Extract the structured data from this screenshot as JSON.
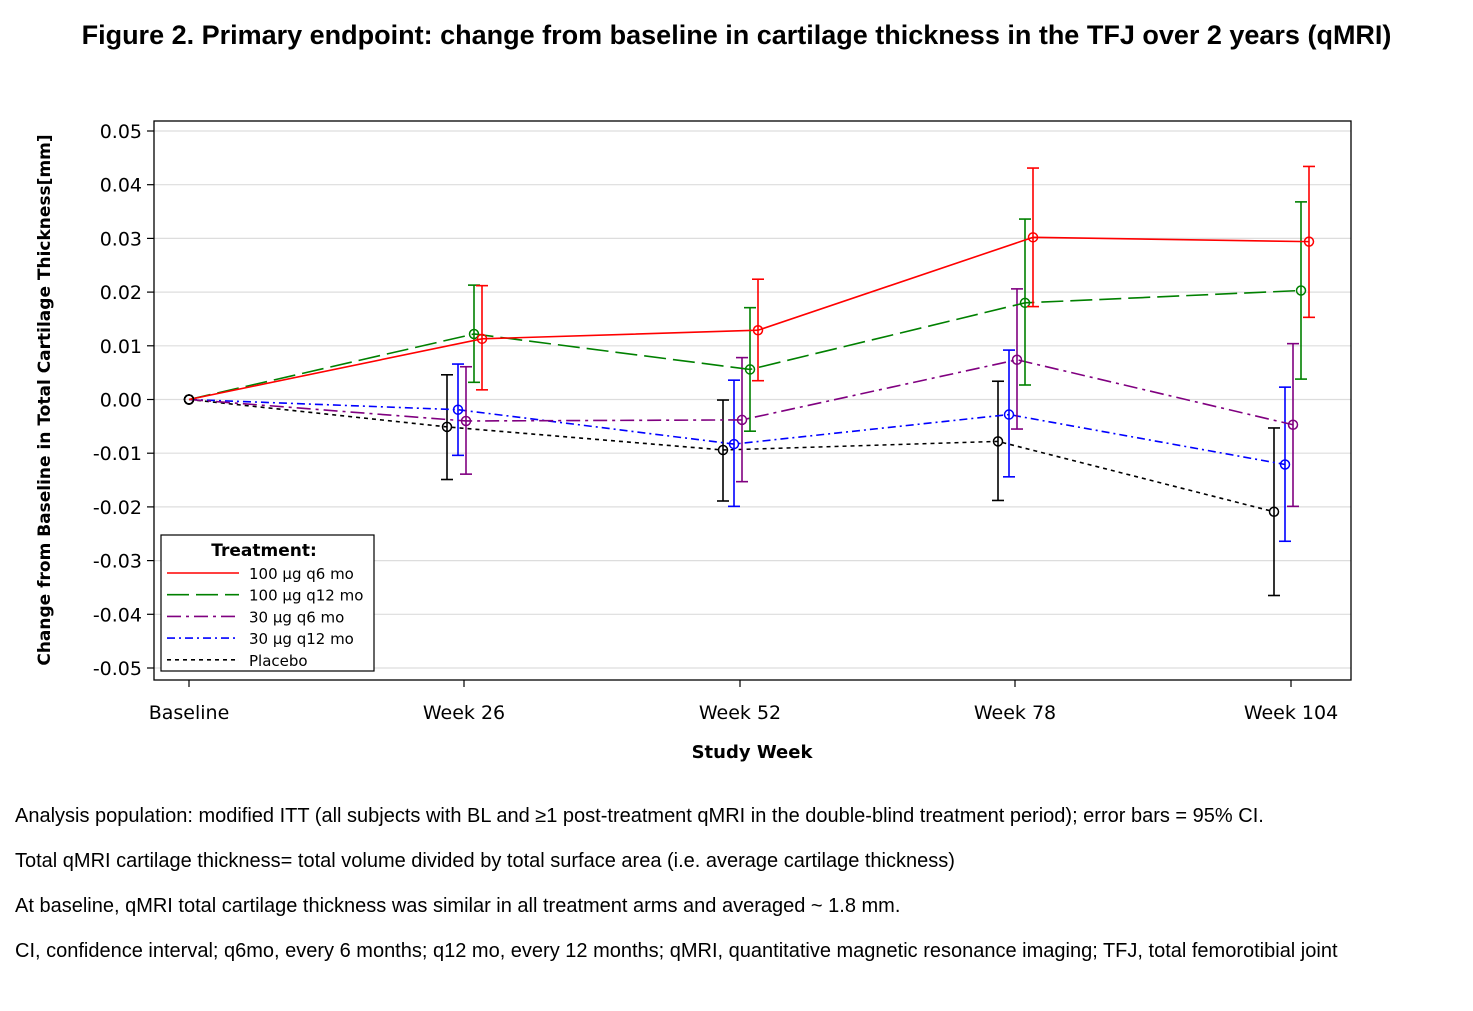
{
  "figure_title": "Figure 2. Primary endpoint: change from baseline in cartilage thickness in the TFJ over 2 years (qMRI)",
  "chart_data": {
    "type": "line",
    "xlabel": "Study Week",
    "ylabel": "Change from Baseline in Total Cartilage Thickness[mm]",
    "categories": [
      "Baseline",
      "Week 26",
      "Week 52",
      "Week 78",
      "Week 104"
    ],
    "ylim": [
      -0.05,
      0.05
    ],
    "yticks": [
      0.05,
      0.04,
      0.03,
      0.02,
      0.01,
      0.0,
      -0.01,
      -0.02,
      -0.03,
      -0.04,
      -0.05
    ],
    "ytick_labels": [
      "0.05",
      "0.04",
      "0.03",
      "0.02",
      "0.01",
      "0.00",
      "-0.01",
      "-0.02",
      "-0.03",
      "-0.04",
      "-0.05"
    ],
    "grid": "horizontal",
    "legend_title": "Treatment:",
    "legend_position": "bottom-left",
    "series": [
      {
        "name": "100 µg q6 mo",
        "color": "#ff0000",
        "dash": "solid",
        "values": [
          0.0,
          0.0113,
          0.0129,
          0.0302,
          0.0294
        ],
        "ci_low": [
          null,
          0.0018,
          0.0035,
          0.0173,
          0.0153
        ],
        "ci_high": [
          null,
          0.0212,
          0.0224,
          0.0431,
          0.0434
        ]
      },
      {
        "name": "100 µg q12 mo",
        "color": "#008000",
        "dash": "longdash",
        "values": [
          0.0,
          0.0122,
          0.0056,
          0.018,
          0.0203
        ],
        "ci_low": [
          null,
          0.0032,
          -0.0059,
          0.0027,
          0.0038
        ],
        "ci_high": [
          null,
          0.0213,
          0.0171,
          0.0336,
          0.0368
        ]
      },
      {
        "name": "30 µg q6 mo",
        "color": "#800080",
        "dash": "dashdot",
        "values": [
          0.0,
          -0.004,
          -0.0038,
          0.0074,
          -0.0047
        ],
        "ci_low": [
          null,
          -0.0139,
          -0.0153,
          -0.0055,
          -0.0199
        ],
        "ci_high": [
          null,
          0.0061,
          0.0078,
          0.0206,
          0.0104
        ]
      },
      {
        "name": "30 µg q12 mo",
        "color": "#0000ff",
        "dash": "shortdashdot",
        "values": [
          0.0,
          -0.0019,
          -0.0083,
          -0.0028,
          -0.0121
        ],
        "ci_low": [
          null,
          -0.0104,
          -0.0199,
          -0.0144,
          -0.0264
        ],
        "ci_high": [
          null,
          0.0066,
          0.0036,
          0.0092,
          0.0023
        ]
      },
      {
        "name": "Placebo",
        "color": "#000000",
        "dash": "dot",
        "values": [
          0.0,
          -0.0051,
          -0.0094,
          -0.0078,
          -0.0209
        ],
        "ci_low": [
          null,
          -0.0149,
          -0.0189,
          -0.0188,
          -0.0365
        ],
        "ci_high": [
          null,
          0.0046,
          -0.0001,
          0.0034,
          -0.0053
        ]
      }
    ]
  },
  "notes": [
    "Analysis population: modified ITT (all subjects with BL and ≥1 post-treatment qMRI in the double-blind treatment period); error bars = 95% CI.",
    "Total qMRI cartilage thickness= total volume divided by total surface area (i.e. average cartilage thickness)",
    "At baseline, qMRI total cartilage thickness was similar in all treatment arms and averaged ~ 1.8 mm.",
    "CI, confidence interval; q6mo, every 6 months; q12 mo, every 12 months; qMRI, quantitative magnetic resonance imaging; TFJ, total femorotibial joint"
  ]
}
